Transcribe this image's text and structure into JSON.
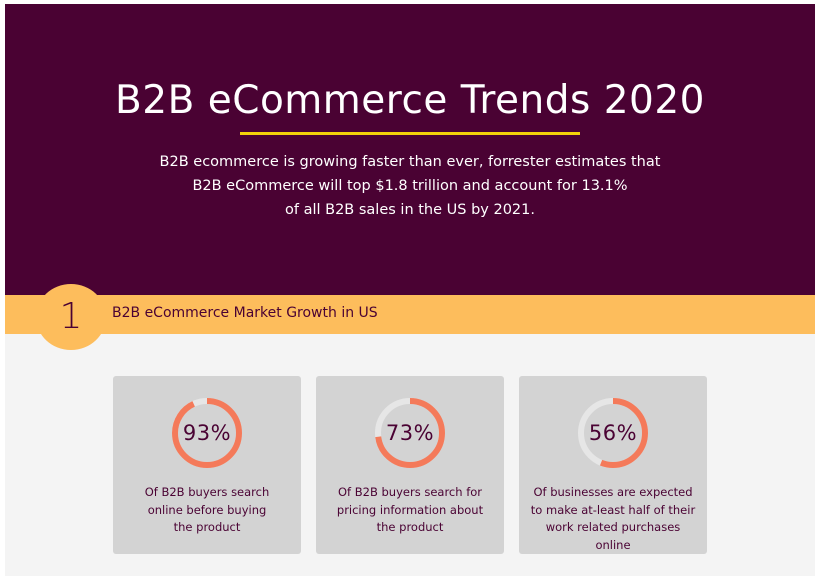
{
  "hero": {
    "title": "B2B eCommerce Trends 2020",
    "subtitle_lines": [
      "B2B ecommerce is growing faster than ever, forrester estimates that",
      "B2B eCommerce will top $1.8 trillion and account for 13.1%",
      "of all B2B sales in the US by 2021."
    ],
    "accent_color": "#f3d20a",
    "background_color": "#4a0233"
  },
  "section": {
    "number": "1",
    "title": "B2B eCommerce Market Growth in US",
    "band_color": "#fdbd5c"
  },
  "stats": [
    {
      "value_label": "93%",
      "percent": 93,
      "lines": [
        "Of B2B buyers search",
        "online before buying",
        "the product"
      ]
    },
    {
      "value_label": "73%",
      "percent": 73,
      "lines": [
        "Of B2B buyers search for",
        "pricing information about",
        "the product"
      ]
    },
    {
      "value_label": "56%",
      "percent": 56,
      "lines": [
        "Of businesses are expected",
        "to make at-least half of their",
        "work related purchases",
        "online"
      ]
    }
  ],
  "gauge_colors": {
    "fill": "#f47a5a",
    "track": "#e6e6e6"
  }
}
